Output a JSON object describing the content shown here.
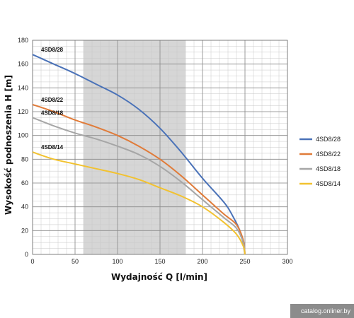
{
  "chart_data": {
    "type": "line",
    "xlabel": "Wydajność Q [l/min]",
    "ylabel": "Wysokość podnoszenia H [m]",
    "xlim": [
      0,
      300
    ],
    "ylim": [
      0,
      180
    ],
    "x_ticks": [
      "0",
      "50",
      "100",
      "150",
      "200",
      "250",
      "300"
    ],
    "y_ticks": [
      "0",
      "20",
      "40",
      "60",
      "80",
      "100",
      "120",
      "140",
      "160",
      "180"
    ],
    "grid": true,
    "shaded_range": [
      60,
      180
    ],
    "legend_position": "right",
    "series": [
      {
        "name": "4SD8/28",
        "color": "#4A72B8",
        "x": [
          0,
          25,
          50,
          75,
          100,
          125,
          150,
          175,
          200,
          225,
          235,
          245,
          250
        ],
        "y": [
          168,
          160,
          152,
          143,
          134,
          122,
          106,
          86,
          64,
          44,
          33,
          18,
          0
        ]
      },
      {
        "name": "4SD8/22",
        "color": "#E07B39",
        "x": [
          0,
          25,
          50,
          75,
          100,
          125,
          150,
          175,
          200,
          225,
          240,
          248,
          250
        ],
        "y": [
          126,
          120,
          113,
          107,
          100,
          91,
          80,
          66,
          50,
          34,
          25,
          12,
          0
        ]
      },
      {
        "name": "4SD8/18",
        "color": "#A6A6A6",
        "x": [
          0,
          25,
          50,
          75,
          100,
          125,
          150,
          175,
          200,
          225,
          240,
          248,
          250
        ],
        "y": [
          115,
          108,
          102,
          97,
          91,
          84,
          74,
          61,
          46,
          31,
          22,
          10,
          0
        ]
      },
      {
        "name": "4SD8/14",
        "color": "#F2C230",
        "x": [
          0,
          25,
          50,
          75,
          100,
          125,
          150,
          175,
          200,
          225,
          240,
          248,
          250
        ],
        "y": [
          86,
          80,
          76,
          72,
          68,
          63,
          56,
          49,
          40,
          27,
          17,
          7,
          0
        ]
      }
    ]
  },
  "watermark": "catalog.onliner.by"
}
